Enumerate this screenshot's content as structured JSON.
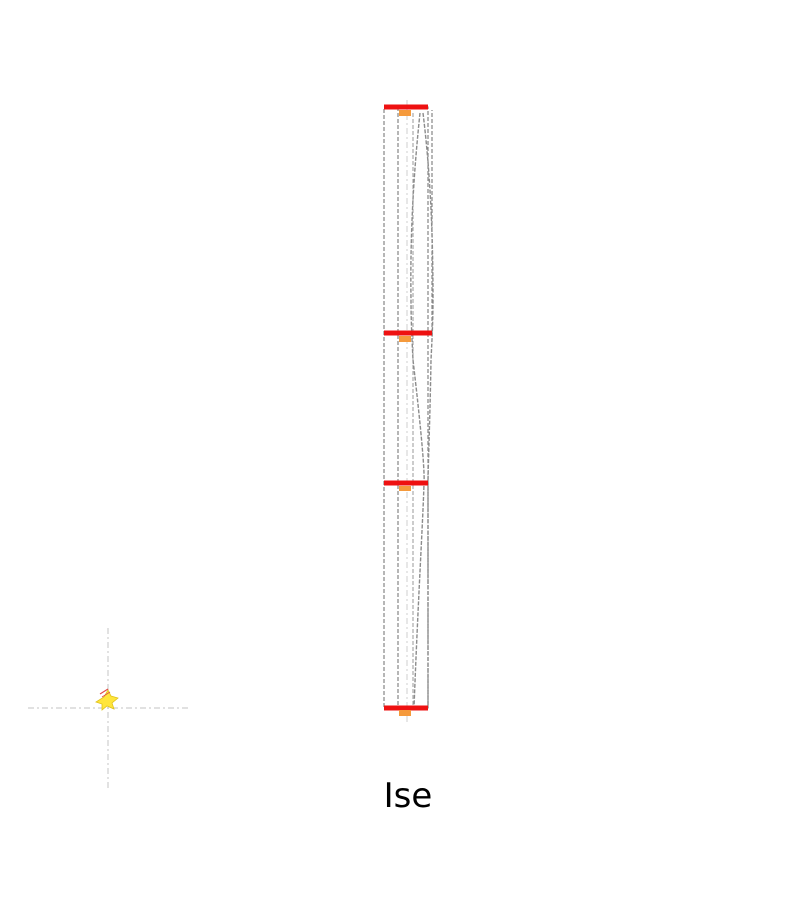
{
  "caption": "Ise",
  "colors": {
    "beam": "#ee1111",
    "bearing": "#f59a3c",
    "outline": "#7a7a7a",
    "axis": "#cfcfcf",
    "deformed": "#8c8c8c",
    "marker_fill": "#ffe53b",
    "marker_stroke": "#e0c21a",
    "marker_accent": "#e04a4a"
  },
  "icons": {
    "origin_marker": "rabbit-marker-icon"
  }
}
